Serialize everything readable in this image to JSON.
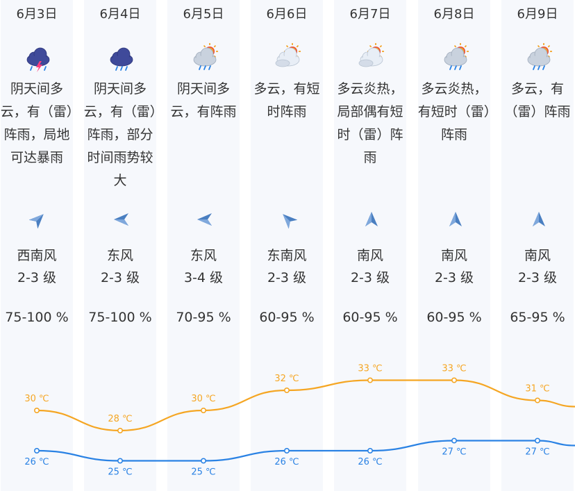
{
  "days": [
    {
      "date": "6月3日",
      "icon": "thunderstorm-rain-icon",
      "desc": "阴天间多云，有（雷）阵雨，局地可达暴雨",
      "wind_dir": "西南风",
      "wind_level": "2-3 级",
      "wind_arrow": "wind-arrow-southwest-icon",
      "humidity": "75-100 %",
      "high": 30,
      "low": 26,
      "high_label": "30 ℃",
      "low_label": "26 ℃"
    },
    {
      "date": "6月4日",
      "icon": "heavy-rain-cloud-icon",
      "desc": "阴天间多云，有（雷）阵雨，部分时间雨势较大",
      "wind_dir": "东风",
      "wind_level": "2-3 级",
      "wind_arrow": "wind-arrow-east-icon",
      "humidity": "75-100 %",
      "high": 28,
      "low": 25,
      "high_label": "28 ℃",
      "low_label": "25 ℃"
    },
    {
      "date": "6月5日",
      "icon": "partly-cloudy-shower-icon",
      "desc": "阴天间多云，有阵雨",
      "wind_dir": "东风",
      "wind_level": "3-4 级",
      "wind_arrow": "wind-arrow-east-icon",
      "humidity": "70-95 %",
      "high": 30,
      "low": 25,
      "high_label": "30 ℃",
      "low_label": "25 ℃"
    },
    {
      "date": "6月6日",
      "icon": "sun-behind-cloud-icon",
      "desc": "多云，有短时阵雨",
      "wind_dir": "东南风",
      "wind_level": "2-3 级",
      "wind_arrow": "wind-arrow-southeast-icon",
      "humidity": "60-95 %",
      "high": 32,
      "low": 26,
      "high_label": "32 ℃",
      "low_label": "26 ℃"
    },
    {
      "date": "6月7日",
      "icon": "sun-behind-cloud-icon",
      "desc": "多云炎热，局部偶有短时（雷）阵雨",
      "wind_dir": "南风",
      "wind_level": "2-3 级",
      "wind_arrow": "wind-arrow-south-icon",
      "humidity": "60-95 %",
      "high": 33,
      "low": 26,
      "high_label": "33 ℃",
      "low_label": "26 ℃"
    },
    {
      "date": "6月8日",
      "icon": "partly-cloudy-shower-icon",
      "desc": "多云炎热，有短时（雷）阵雨",
      "wind_dir": "南风",
      "wind_level": "2-3 级",
      "wind_arrow": "wind-arrow-south-icon",
      "humidity": "60-95 %",
      "high": 33,
      "low": 27,
      "high_label": "33 ℃",
      "low_label": "27 ℃"
    },
    {
      "date": "6月9日",
      "icon": "partly-cloudy-shower-icon",
      "desc": "多云，有（雷）阵雨",
      "wind_dir": "南风",
      "wind_level": "2-3 级",
      "wind_arrow": "wind-arrow-south-icon",
      "humidity": "65-95 %",
      "high": 31,
      "low": 27,
      "high_label": "31 ℃",
      "low_label": "27 ℃"
    }
  ],
  "colors": {
    "high_line": "#f5a623",
    "low_line": "#2a82e4",
    "column_bg": "#f6f8fc",
    "wind_arrow": "#4a7fc1"
  }
}
